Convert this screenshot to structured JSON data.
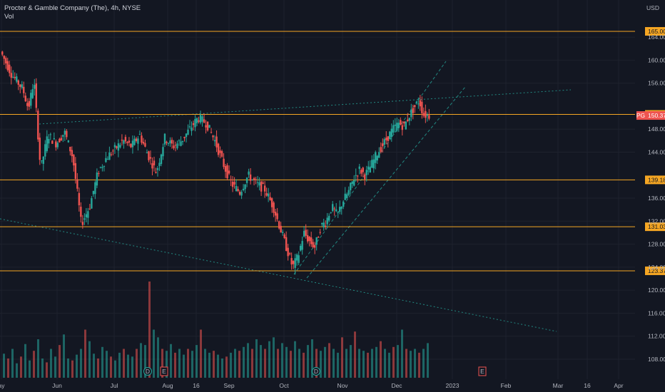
{
  "legend": {
    "title": "Procter & Gamble Company (The), 4h, NYSE",
    "volume_label": "Vol"
  },
  "axis": {
    "currency": "USD"
  },
  "colors": {
    "background": "#131722",
    "grid": "#1e222d",
    "up": "#26a69a",
    "down": "#ef5350",
    "level_line": "#f5a623",
    "trendline": "#26a69a",
    "axis_text": "#b2b5be",
    "price_tag": "#ef5350"
  },
  "chart_data": {
    "type": "candlestick",
    "title": "Procter & Gamble Company (The), 4h, NYSE",
    "y_axis_ticks": [
      "164.00",
      "160.00",
      "156.00",
      "148.00",
      "144.00",
      "136.00",
      "132.00",
      "128.00",
      "124.00",
      "120.00",
      "116.00",
      "112.00",
      "108.00"
    ],
    "y_tick_values": [
      164,
      160,
      156,
      148,
      144,
      136,
      132,
      128,
      124,
      120,
      116,
      112,
      108
    ],
    "ylim": [
      106.3,
      168.2
    ],
    "x_axis_labels": [
      "ay",
      "Jun",
      "Jul",
      "Aug",
      "16",
      "Sep",
      "Oct",
      "Nov",
      "Dec",
      "2023",
      "Feb",
      "Mar",
      "16",
      "Apr"
    ],
    "horizontal_levels": [
      {
        "value": 165.0,
        "label": "165.00"
      },
      {
        "value": 150.56,
        "label": "150.56"
      },
      {
        "value": 139.18,
        "label": "139.18"
      },
      {
        "value": 131.03,
        "label": "131.03"
      },
      {
        "value": 123.37,
        "label": "123.37"
      }
    ],
    "last_price": {
      "symbol": "PG",
      "value": 150.37,
      "label": "150.37"
    },
    "price_path": [
      {
        "t": 0.0,
        "p": 161.5
      },
      {
        "t": 0.02,
        "p": 157.5
      },
      {
        "t": 0.04,
        "p": 155.0
      },
      {
        "t": 0.05,
        "p": 151.5
      },
      {
        "t": 0.06,
        "p": 156.5
      },
      {
        "t": 0.072,
        "p": 141.0
      },
      {
        "t": 0.085,
        "p": 147.0
      },
      {
        "t": 0.1,
        "p": 145.5
      },
      {
        "t": 0.115,
        "p": 147.5
      },
      {
        "t": 0.13,
        "p": 143.0
      },
      {
        "t": 0.145,
        "p": 131.5
      },
      {
        "t": 0.16,
        "p": 134.5
      },
      {
        "t": 0.175,
        "p": 140.5
      },
      {
        "t": 0.19,
        "p": 143.0
      },
      {
        "t": 0.205,
        "p": 144.5
      },
      {
        "t": 0.22,
        "p": 146.0
      },
      {
        "t": 0.235,
        "p": 145.0
      },
      {
        "t": 0.25,
        "p": 147.0
      },
      {
        "t": 0.265,
        "p": 143.5
      },
      {
        "t": 0.28,
        "p": 140.5
      },
      {
        "t": 0.295,
        "p": 146.5
      },
      {
        "t": 0.31,
        "p": 145.0
      },
      {
        "t": 0.325,
        "p": 146.0
      },
      {
        "t": 0.34,
        "p": 148.0
      },
      {
        "t": 0.355,
        "p": 150.0
      },
      {
        "t": 0.37,
        "p": 149.0
      },
      {
        "t": 0.385,
        "p": 146.0
      },
      {
        "t": 0.4,
        "p": 142.0
      },
      {
        "t": 0.415,
        "p": 138.5
      },
      {
        "t": 0.43,
        "p": 137.0
      },
      {
        "t": 0.445,
        "p": 140.0
      },
      {
        "t": 0.46,
        "p": 138.5
      },
      {
        "t": 0.475,
        "p": 137.5
      },
      {
        "t": 0.49,
        "p": 134.5
      },
      {
        "t": 0.505,
        "p": 130.0
      },
      {
        "t": 0.515,
        "p": 127.0
      },
      {
        "t": 0.525,
        "p": 124.0
      },
      {
        "t": 0.535,
        "p": 126.0
      },
      {
        "t": 0.545,
        "p": 130.0
      },
      {
        "t": 0.555,
        "p": 128.5
      },
      {
        "t": 0.565,
        "p": 127.5
      },
      {
        "t": 0.575,
        "p": 131.0
      },
      {
        "t": 0.585,
        "p": 132.0
      },
      {
        "t": 0.595,
        "p": 134.5
      },
      {
        "t": 0.605,
        "p": 133.0
      },
      {
        "t": 0.615,
        "p": 135.5
      },
      {
        "t": 0.625,
        "p": 137.0
      },
      {
        "t": 0.635,
        "p": 139.5
      },
      {
        "t": 0.645,
        "p": 141.0
      },
      {
        "t": 0.655,
        "p": 140.0
      },
      {
        "t": 0.665,
        "p": 141.5
      },
      {
        "t": 0.675,
        "p": 143.5
      },
      {
        "t": 0.685,
        "p": 145.0
      },
      {
        "t": 0.695,
        "p": 146.5
      },
      {
        "t": 0.705,
        "p": 148.0
      },
      {
        "t": 0.715,
        "p": 149.0
      },
      {
        "t": 0.725,
        "p": 148.5
      },
      {
        "t": 0.735,
        "p": 150.5
      },
      {
        "t": 0.745,
        "p": 152.0
      },
      {
        "t": 0.752,
        "p": 153.0
      },
      {
        "t": 0.76,
        "p": 150.5
      },
      {
        "t": 0.77,
        "p": 150.4
      }
    ],
    "volume_relative": [
      0.25,
      0.2,
      0.3,
      0.15,
      0.22,
      0.35,
      0.18,
      0.28,
      0.4,
      0.2,
      0.16,
      0.3,
      0.22,
      0.34,
      0.45,
      0.2,
      0.18,
      0.24,
      0.3,
      0.5,
      0.38,
      0.25,
      0.2,
      0.32,
      0.28,
      0.22,
      0.18,
      0.26,
      0.3,
      0.24,
      0.22,
      0.3,
      0.36,
      0.34,
      1.0,
      0.5,
      0.42,
      0.3,
      0.28,
      0.35,
      0.26,
      0.3,
      0.24,
      0.3,
      0.28,
      0.34,
      0.5,
      0.3,
      0.26,
      0.28,
      0.24,
      0.2,
      0.22,
      0.26,
      0.3,
      0.28,
      0.32,
      0.36,
      0.3,
      0.4,
      0.34,
      0.3,
      0.38,
      0.42,
      0.3,
      0.36,
      0.32,
      0.28,
      0.38,
      0.3,
      0.26,
      0.34,
      0.4,
      0.3,
      0.28,
      0.32,
      0.36,
      0.3,
      0.26,
      0.42,
      0.3,
      0.34,
      0.48,
      0.3,
      0.28,
      0.26,
      0.3,
      0.32,
      0.38,
      0.3,
      0.26,
      0.32,
      0.34,
      0.5,
      0.3,
      0.28,
      0.3,
      0.26,
      0.3,
      0.36
    ],
    "event_markers": [
      {
        "type": "dividend",
        "symbol": "D"
      },
      {
        "type": "earnings",
        "symbol": "E"
      },
      {
        "type": "dividend",
        "symbol": "D"
      },
      {
        "type": "earnings",
        "symbol": "E"
      }
    ],
    "trendlines": [
      {
        "name": "resistance",
        "style": "dotted"
      },
      {
        "name": "support",
        "style": "dotted"
      },
      {
        "name": "channel-upper",
        "style": "dashed"
      },
      {
        "name": "channel-lower",
        "style": "dashed"
      }
    ],
    "grid": true,
    "legend_position": "top-left"
  }
}
